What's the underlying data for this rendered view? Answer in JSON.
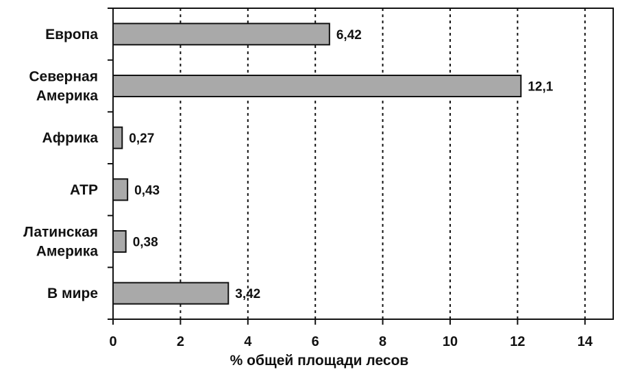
{
  "chart_data": {
    "type": "bar",
    "orientation": "horizontal",
    "categories": [
      "Европа",
      "Северная Америка",
      "Африка",
      "АТР",
      "Латинская Америка",
      "В мире"
    ],
    "category_lines": [
      [
        "Европа"
      ],
      [
        "Северная",
        "Америка"
      ],
      [
        "Африка"
      ],
      [
        "АТР"
      ],
      [
        "Латинская",
        "Америка"
      ],
      [
        "В мире"
      ]
    ],
    "values": [
      6.42,
      12.1,
      0.27,
      0.43,
      0.38,
      3.42
    ],
    "value_labels": [
      "6,42",
      "12,1",
      "0,27",
      "0,43",
      "0,38",
      "3,42"
    ],
    "xlabel": "% общей площади лесов",
    "ylabel": "",
    "title": "",
    "xlim": [
      0,
      14.5
    ],
    "xticks": [
      0,
      2,
      4,
      6,
      8,
      10,
      12,
      14
    ],
    "grid": "vertical dashed",
    "legend": "none",
    "colors": {
      "bar": "#a9a9a9",
      "outline": "#111111"
    }
  }
}
